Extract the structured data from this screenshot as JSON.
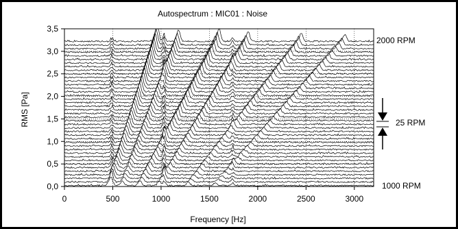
{
  "chart_data": {
    "type": "line",
    "title": "Autospectrum : MIC01 : Noise",
    "xlabel": "Frequency [Hz]",
    "ylabel": "RMS [Pa]",
    "xlim": [
      0,
      3200
    ],
    "ylim": [
      0.0,
      3.5
    ],
    "x_ticks": [
      0,
      500,
      1000,
      1500,
      2000,
      2500,
      3000
    ],
    "x_tick_labels": [
      "0",
      "500",
      "1000",
      "1500",
      "2000",
      "2500",
      "3000"
    ],
    "y_ticks": [
      0.0,
      0.5,
      1.0,
      1.5,
      2.0,
      2.5,
      3.0,
      3.5
    ],
    "y_tick_labels": [
      "0,0",
      "0,5",
      "1,0",
      "1,5",
      "2,0",
      "2,5",
      "3,0",
      "3,5"
    ],
    "grid": "dotted",
    "waterfall": {
      "rpm_start": 1000,
      "rpm_end": 2000,
      "rpm_step": 25,
      "trace_count": 41,
      "baseline_offset_per_trace": 0.08
    },
    "annotations": {
      "top_rpm": "2000 RPM",
      "bottom_rpm": "1000 RPM",
      "step": "25 RPM"
    },
    "colors": {
      "trace": "#000000",
      "grid": "#000000",
      "background": "#ffffff"
    }
  }
}
